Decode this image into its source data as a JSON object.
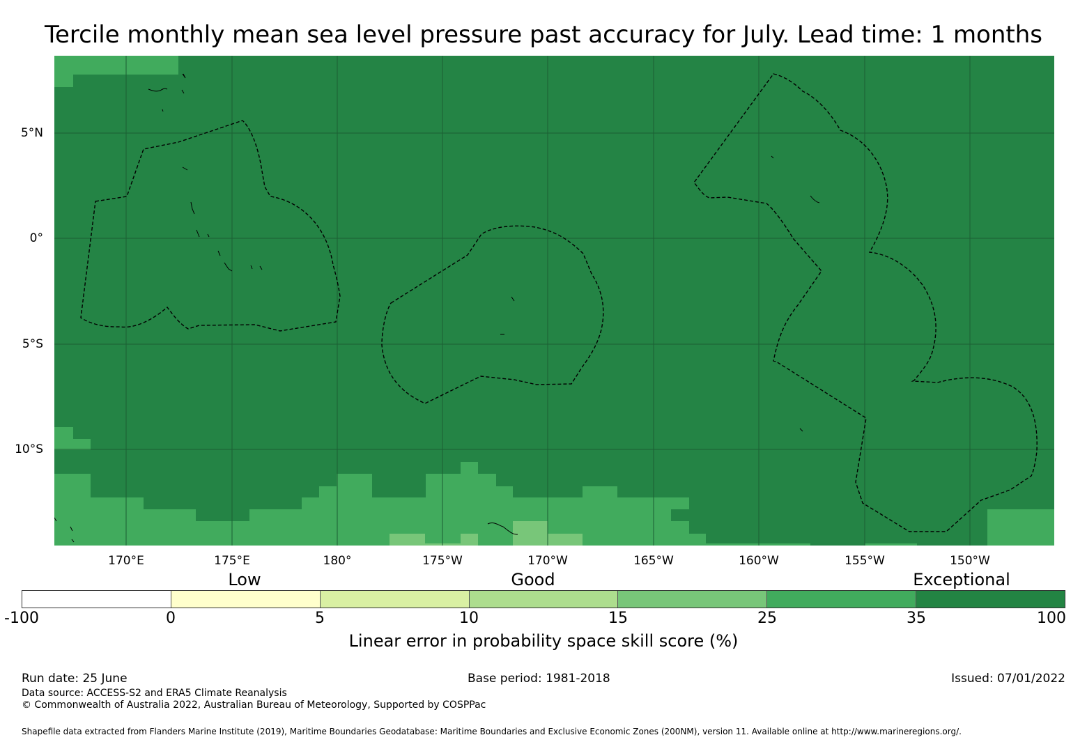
{
  "title": "Tercile monthly mean sea level pressure past accuracy for July. Lead time: 1 months",
  "map": {
    "lat_labels": [
      {
        "label": "5°N",
        "lat": 5
      },
      {
        "label": "0°",
        "lat": 0
      },
      {
        "label": "5°S",
        "lat": -5
      },
      {
        "label": "10°S",
        "lat": -10
      }
    ],
    "lon_labels": [
      "170°E",
      "175°E",
      "180°",
      "175°W",
      "170°W",
      "165°W",
      "160°W",
      "155°W",
      "150°W"
    ],
    "colors": {
      "exceptional": "#248445",
      "very_good": "#41ab5d",
      "good": "#78c679",
      "fair": "#addd8e",
      "gridline": "#1b5e33",
      "coastline": "#000000"
    }
  },
  "colorbar": {
    "categories": [
      "Low",
      "Good",
      "Exceptional"
    ],
    "ticks": [
      "-100",
      "0",
      "5",
      "10",
      "15",
      "25",
      "35",
      "100"
    ],
    "colors": [
      "#ffffff",
      "#ffffcc",
      "#d9f0a3",
      "#addd8e",
      "#78c679",
      "#41ab5d",
      "#238443"
    ],
    "caption": "Linear error in probability space skill score (%)"
  },
  "footer": {
    "run_date": "Run date: 25 June",
    "base_period": "Base period: 1981-2018",
    "issued": "Issued: 07/01/2022",
    "data_source": "Data source: ACCESS-S2 and ERA5 Climate Reanalysis",
    "copyright": "© Commonwealth of Australia 2022, Australian Bureau of Meteorology, Supported by COSPPac",
    "shapefile": "Shapefile data extracted from Flanders Marine Institute (2019), Maritime Boundaries Geodatabase: Maritime Boundaries and Exclusive Economic Zones (200NM), version 11. Available online at http://www.marineregions.org/."
  }
}
